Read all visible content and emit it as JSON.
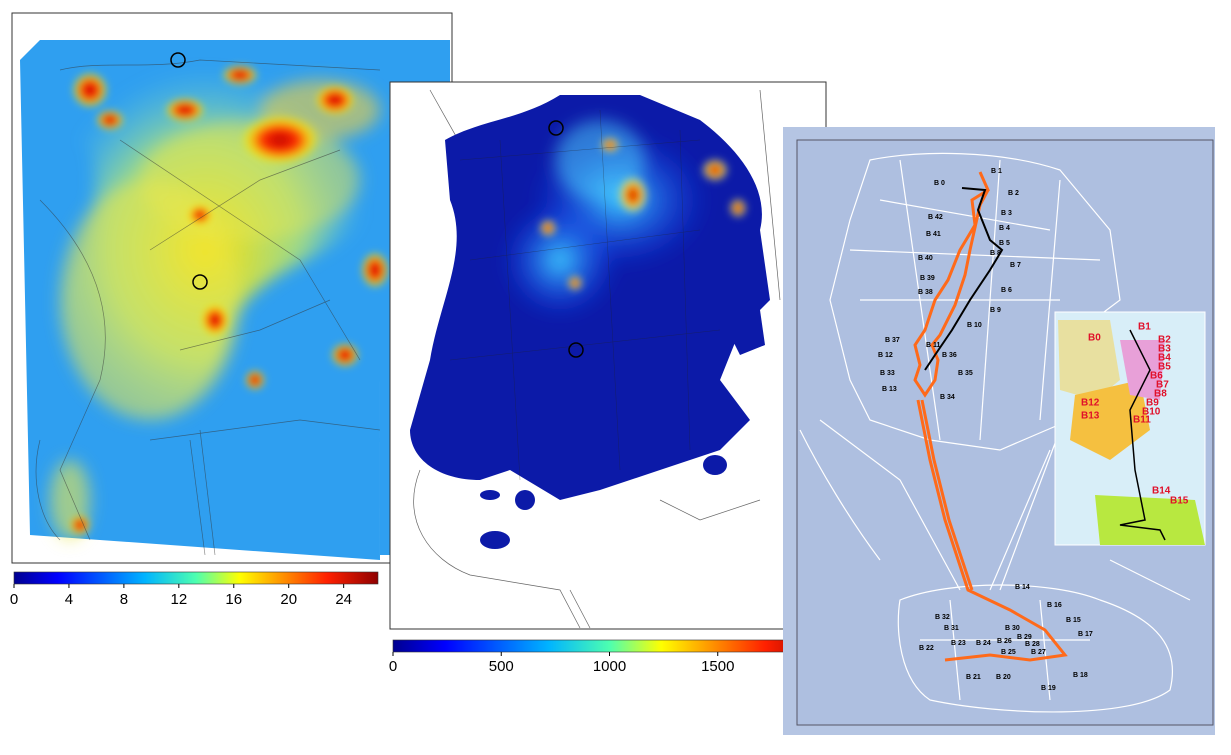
{
  "panels": [
    {
      "colorbar": {
        "range": [
          0,
          26.5
        ],
        "ticks": [
          0,
          4,
          8,
          12,
          16,
          20,
          24
        ]
      }
    },
    {
      "colorbar": {
        "range": [
          0,
          2000
        ],
        "ticks": [
          0,
          500,
          1000,
          1500
        ]
      }
    },
    {
      "route_labels": [
        "B 0",
        "B 1",
        "B 2",
        "B 42",
        "B 3",
        "B 41",
        "B 4",
        "B 5",
        "B 40",
        "B 8",
        "B 7",
        "B 39",
        "B 6",
        "B 38",
        "B 9",
        "B 10",
        "B 37",
        "B 11",
        "B 12",
        "B 36",
        "B 33",
        "B 35",
        "B 13",
        "B 34",
        "B 14",
        "B 32",
        "B 16",
        "B 15",
        "B 31",
        "B 30",
        "B 17",
        "B 29",
        "B 28",
        "B 22",
        "B 23",
        "B 24",
        "B 26",
        "B 25",
        "B 27",
        "B 21",
        "B 20",
        "B 19",
        "B 18"
      ],
      "inset_labels": [
        "B0",
        "B1",
        "B2",
        "B3",
        "B4",
        "B5",
        "B6",
        "B7",
        "B8",
        "B9",
        "B10",
        "B11",
        "B12",
        "B13",
        "B14",
        "B15"
      ]
    }
  ]
}
